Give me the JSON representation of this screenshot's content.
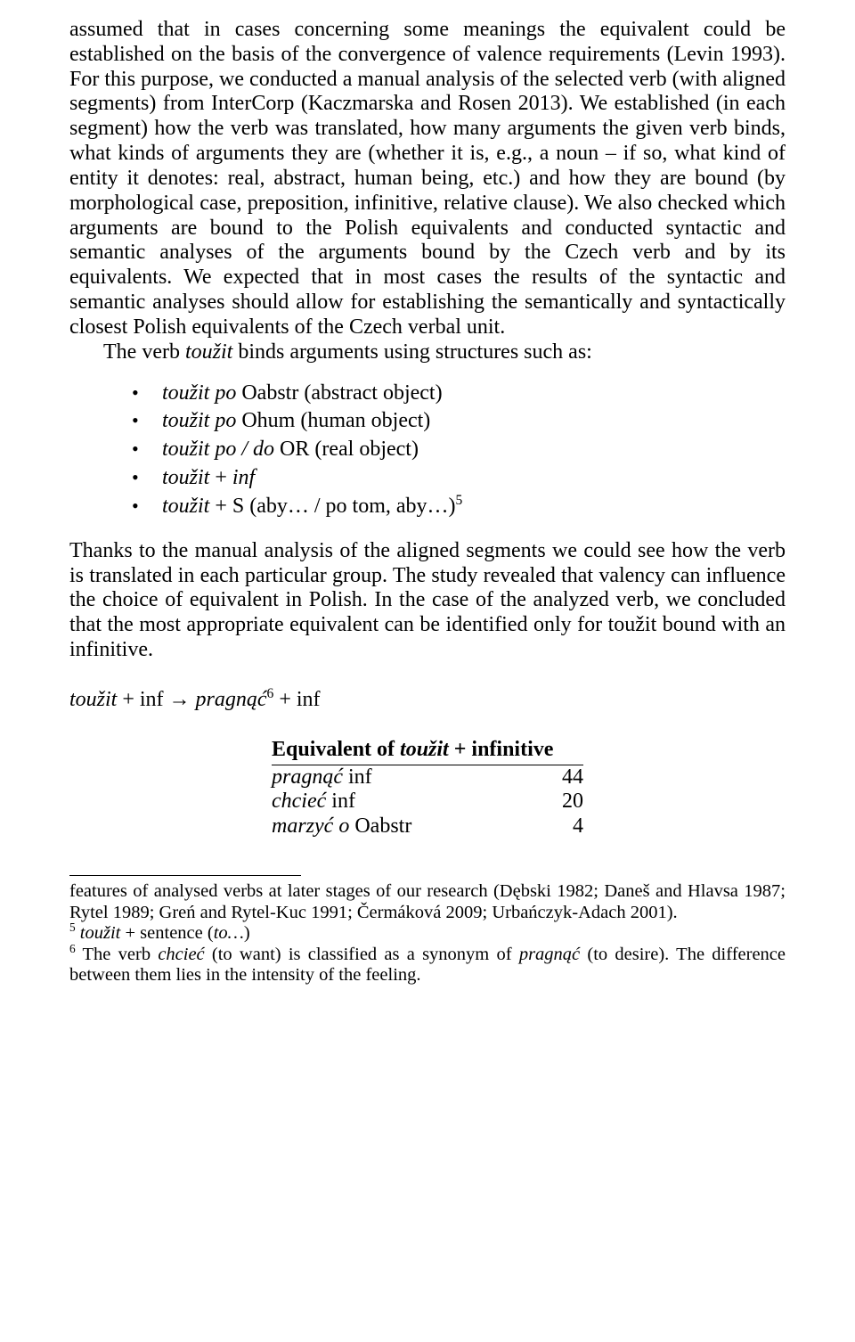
{
  "para1": "assumed that in cases concerning some meanings the equivalent could be established on the basis of the convergence of valence requirements (Levin 1993). For this purpose, we conducted a manual analysis of the selected verb (with aligned segments) from InterCorp (Kaczmarska and Rosen 2013). We established (in each segment) how the verb was translated, how many arguments the given verb binds, what kinds of arguments they are (whether it is, e.g., a noun – if so, what kind of entity it denotes: real, abstract, human being, etc.) and how they are bound (by morphological case, preposition, infinitive, relative clause). We also checked which arguments are bound to the Polish equivalents and conducted syntactic and semantic analyses of the arguments bound by the Czech verb and by its equivalents. We expected that in most cases the results of the syntactic and semantic analyses should allow for establishing the semantically and syntactically closest Polish equivalents of the Czech verbal unit.",
  "para1b_a": "The verb ",
  "para1b_i": "toužit",
  "para1b_b": " binds arguments using structures such as:",
  "bullets": [
    {
      "i": "toužit po",
      "r": " Oabstr (abstract object)"
    },
    {
      "i": "toužit po",
      "r": " Ohum (human object)"
    },
    {
      "i": "toužit po / do",
      "r": " OR (real object)"
    },
    {
      "i": "toužit",
      "r": " + ",
      "i2": "inf"
    },
    {
      "i": "toužit",
      "r": " + S (aby… / po tom, aby…)",
      "sup": "5"
    }
  ],
  "para2": "Thanks to the manual analysis of the aligned segments we could see how the verb is translated in each particular group. The study revealed that valency can influence the choice of equivalent in Polish. In the case of the analyzed verb, we concluded that the most appropriate equivalent can be identified only for toužit bound with an infinitive.",
  "formula": {
    "a_i": "toužit",
    "a_r": " + inf → ",
    "b_i": "pragnąć",
    "b_sup": "6",
    "b_r": " + inf"
  },
  "table": {
    "head_a": "Equivalent of ",
    "head_i": "toužit",
    "head_b": " + infinitive",
    "rows": [
      {
        "label_i": "pragnąć",
        "label_r": " inf",
        "val": "44"
      },
      {
        "label_i": "chcieć",
        "label_r": " inf",
        "val": "20"
      },
      {
        "label_i": "marzyć o",
        "label_r": " Oabstr",
        "val": "4"
      }
    ]
  },
  "fn_cont": "features of analysed verbs at later stages of our research (Dębski 1982; Daneš and Hlavsa 1987; Rytel 1989; Greń and Rytel-Kuc 1991; Čermáková 2009; Urbańczyk-Adach 2001).",
  "fn5_sup": "5",
  "fn5_i": " toužit",
  "fn5_r": " + sentence (",
  "fn5_i2": "to…",
  "fn5_r2": ")",
  "fn6_sup": "6",
  "fn6_a": " The verb ",
  "fn6_i1": "chcieć",
  "fn6_b": " (to want) is classified as a synonym of ",
  "fn6_i2": "pragnąć",
  "fn6_c": " (to desire). The difference between them lies in the intensity of the feeling."
}
